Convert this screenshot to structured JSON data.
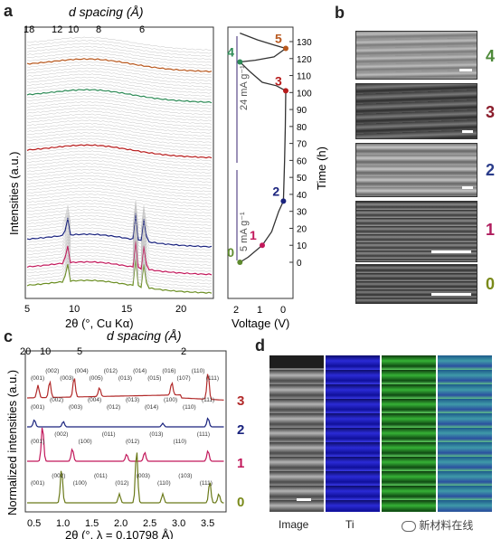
{
  "panel_labels": {
    "a": "a",
    "b": "b",
    "c": "c",
    "d": "d"
  },
  "panel_a": {
    "top_axis": {
      "label": "d spacing (Å)",
      "ticks": [
        "18",
        "12",
        "10",
        "8",
        "6"
      ]
    },
    "x_axis": {
      "label": "2θ (°, Cu Kα)",
      "ticks": [
        "5",
        "10",
        "15",
        "20"
      ]
    },
    "y_axis_label": "Intensities (a.u.)",
    "voltage_axis": {
      "label": "Voltage (V)",
      "ticks": [
        "2",
        "1",
        "0"
      ]
    },
    "time_axis": {
      "label": "Time (h)",
      "ticks": [
        "0",
        "10",
        "20",
        "30",
        "40",
        "50",
        "60",
        "70",
        "80",
        "90",
        "100",
        "110",
        "120",
        "130"
      ]
    },
    "current_labels": [
      "5 mA g⁻¹",
      "24 mA g⁻¹"
    ],
    "points": [
      {
        "label": "0",
        "color": "#5e8a2e"
      },
      {
        "label": "1",
        "color": "#c2185b"
      },
      {
        "label": "2",
        "color": "#1a237e"
      },
      {
        "label": "3",
        "color": "#b71c1c"
      },
      {
        "label": "4",
        "color": "#2e8b57"
      },
      {
        "label": "5",
        "color": "#b8581e"
      }
    ]
  },
  "panel_b": {
    "labels": [
      "4",
      "3",
      "2",
      "1",
      "0"
    ],
    "colors": [
      "#4e8a3a",
      "#8b1d2c",
      "#2a3c8a",
      "#b01d5e",
      "#7a8a1a"
    ]
  },
  "panel_c": {
    "top_axis": {
      "label": "d spacing (Å)",
      "ticks": [
        "20",
        "10",
        "5",
        "2"
      ]
    },
    "x_axis": {
      "label": "2θ (°, λ = 0.10798 Å)",
      "ticks": [
        "0.5",
        "1.0",
        "1.5",
        "2.0",
        "2.5",
        "3.0",
        "3.5"
      ]
    },
    "y_axis_label": "Normalized intensities (a.u.)",
    "trace_labels": [
      "3",
      "2",
      "1",
      "0"
    ],
    "peaks_3": [
      "(001)",
      "(002)",
      "(003)",
      "(004)",
      "(005)",
      "(012)",
      "(013)",
      "(014)",
      "(015)",
      "(016)",
      "(107)",
      "(110)",
      "(111)"
    ],
    "peaks_2": [
      "(001)",
      "(002)",
      "(003)",
      "(004)",
      "(012)",
      "(013)",
      "(014)",
      "(100)",
      "(110)",
      "(111)"
    ],
    "peaks_1": [
      "(001)",
      "(002)",
      "(100)",
      "(011)",
      "(012)",
      "(013)",
      "(110)",
      "(111)"
    ],
    "peaks_0": [
      "(001)",
      "(002)",
      "(100)",
      "(011)",
      "(012)",
      "(003)",
      "(110)",
      "(103)",
      "(111)"
    ]
  },
  "panel_d": {
    "captions": [
      "Image",
      "Ti"
    ],
    "watermark": "新材料在线"
  }
}
